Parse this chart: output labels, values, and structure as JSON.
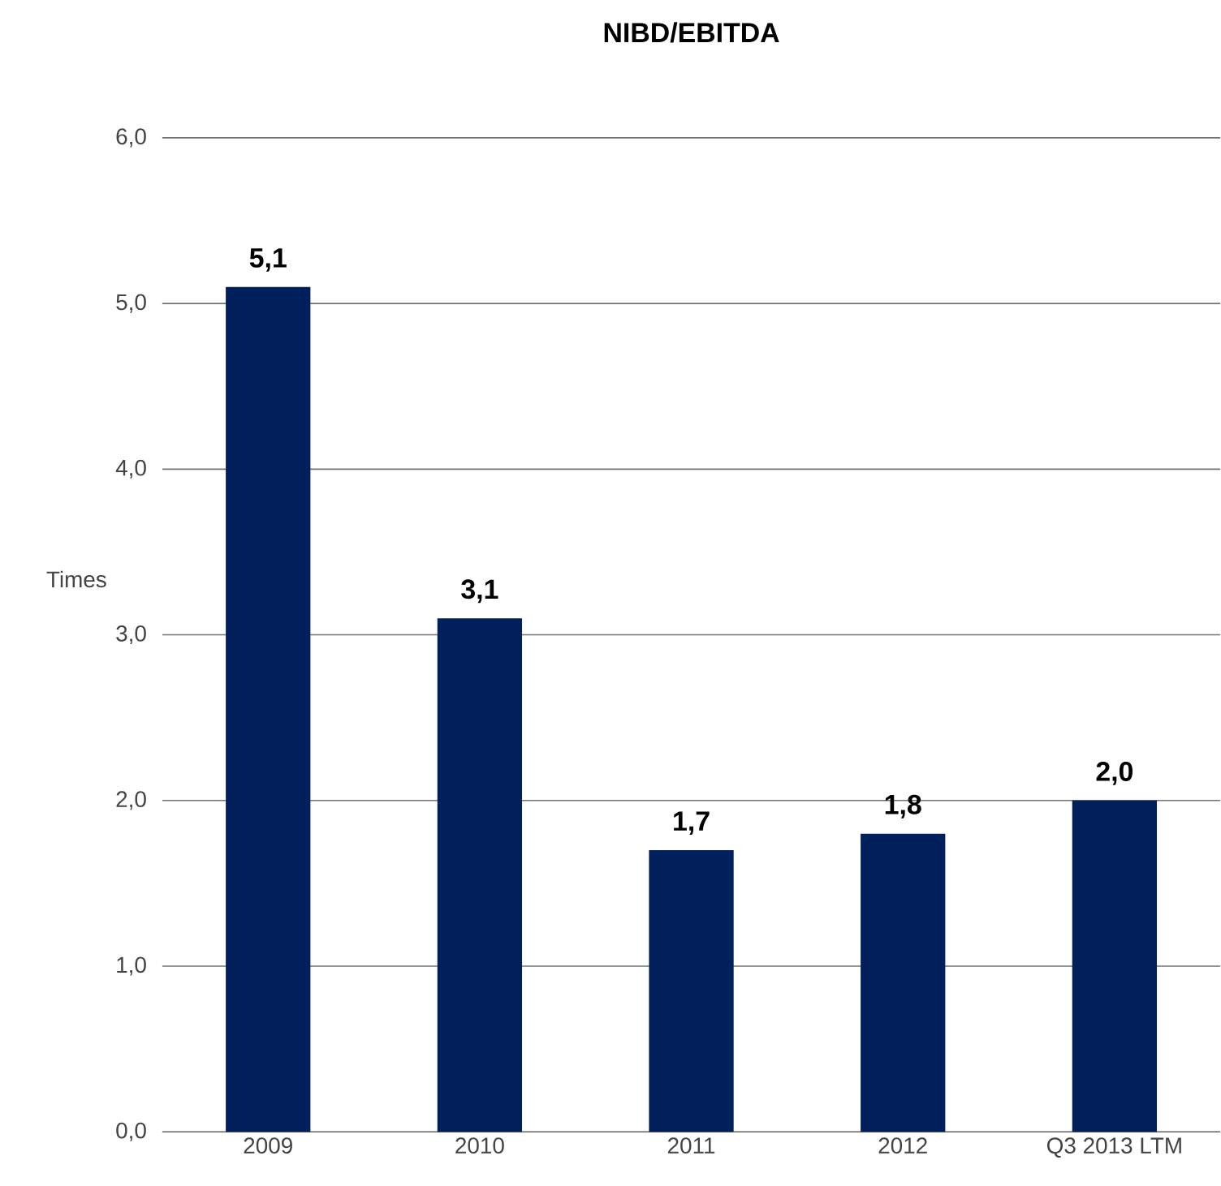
{
  "chart_data": {
    "type": "bar",
    "title": "NIBD/EBITDA",
    "ylabel": "Times",
    "categories": [
      "2009",
      "2010",
      "2011",
      "2012",
      "Q3 2013 LTM"
    ],
    "values": [
      5.1,
      3.1,
      1.7,
      1.8,
      2.0
    ],
    "value_labels": [
      "5,1",
      "3,1",
      "1,7",
      "1,8",
      "2,0"
    ],
    "color": "#001f5b",
    "ylim": [
      0,
      6
    ],
    "yticks": [
      {
        "value": 0,
        "label": "0,0"
      },
      {
        "value": 1,
        "label": "1,0"
      },
      {
        "value": 2,
        "label": "2,0"
      },
      {
        "value": 3,
        "label": "3,0"
      },
      {
        "value": 4,
        "label": "4,0"
      },
      {
        "value": 5,
        "label": "5,0"
      },
      {
        "value": 6,
        "label": "6,0"
      }
    ],
    "grid": "y"
  }
}
